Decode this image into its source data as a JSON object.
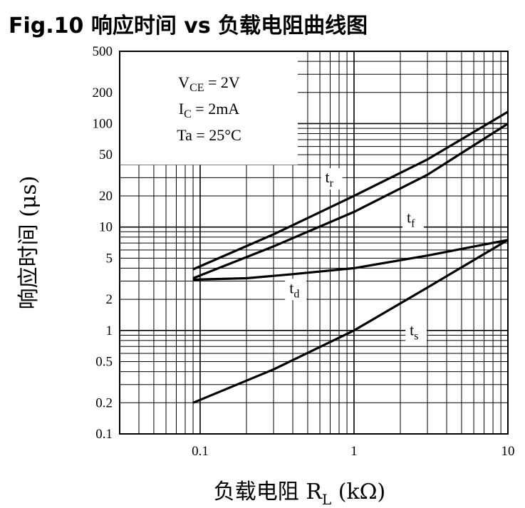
{
  "title": "Fig.10 响应时间 vs 负载电阻曲线图",
  "chart_data": {
    "type": "line",
    "xscale": "log",
    "yscale": "log",
    "xlim": [
      0.03,
      10
    ],
    "ylim": [
      0.1,
      500
    ],
    "xticks": [
      0.1,
      1,
      10
    ],
    "xtick_labels": [
      "0.1",
      "1",
      "10"
    ],
    "yticks": [
      500,
      200,
      100,
      50,
      20,
      10,
      5,
      2,
      1,
      0.5,
      0.2,
      0.1
    ],
    "ytick_labels": [
      "500",
      "200",
      "100",
      "50",
      "20",
      "10",
      "5",
      "2",
      "1",
      "0.5",
      "0.2",
      "0.1"
    ],
    "xlabel": {
      "main": "负载电阻 R",
      "sub": "L",
      "unit": " (kΩ)"
    },
    "ylabel": "响应时间 (μs)",
    "grid": true,
    "conditions": [
      {
        "main": "V",
        "sub": "CE",
        "rest": " = 2V"
      },
      {
        "main": "I",
        "sub": "C",
        "rest": " = 2mA"
      },
      {
        "main": "Ta = 25°C",
        "sub": "",
        "rest": ""
      }
    ],
    "series": [
      {
        "name": "tr",
        "label_main": "t",
        "label_sub": "r",
        "x": [
          0.09,
          0.3,
          1,
          3,
          10
        ],
        "y": [
          3.9,
          8.5,
          20,
          45,
          130
        ]
      },
      {
        "name": "tf",
        "label_main": "t",
        "label_sub": "f",
        "x": [
          0.09,
          0.3,
          1,
          3,
          10
        ],
        "y": [
          3.2,
          6.5,
          14,
          32,
          100
        ]
      },
      {
        "name": "td",
        "label_main": "t",
        "label_sub": "d",
        "x": [
          0.09,
          0.2,
          0.4,
          1,
          3,
          10
        ],
        "y": [
          3.1,
          3.2,
          3.5,
          4.0,
          5.3,
          7.5
        ]
      },
      {
        "name": "ts",
        "label_main": "t",
        "label_sub": "s",
        "x": [
          0.09,
          0.3,
          1,
          3,
          10
        ],
        "y": [
          0.2,
          0.42,
          1.0,
          2.6,
          7.5
        ]
      }
    ],
    "colors": {
      "line": "#000000",
      "grid": "#000000",
      "background": "#ffffff"
    }
  }
}
